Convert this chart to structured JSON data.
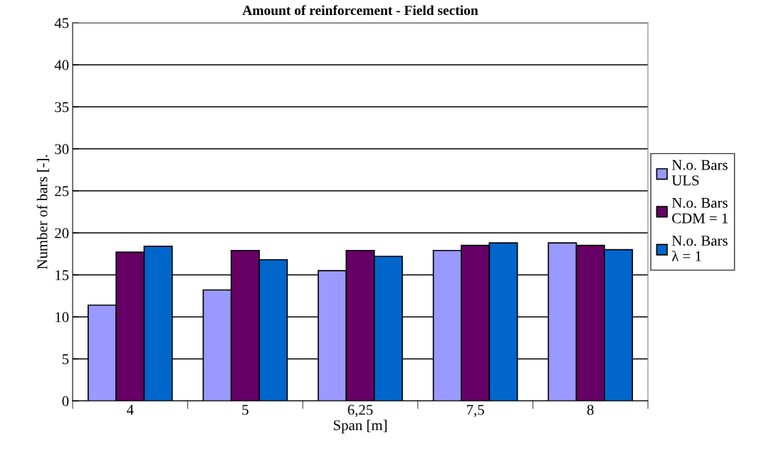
{
  "chart_data": {
    "type": "bar",
    "title": "Amount of reinforcement - Field section",
    "xlabel": "Span [m]",
    "ylabel": "Number of bars [-].",
    "categories": [
      "4",
      "5",
      "6,25",
      "7,5",
      "8"
    ],
    "series": [
      {
        "name": "N.o. Bars\nULS",
        "color": "#9999ff",
        "values": [
          11.4,
          13.2,
          15.5,
          17.9,
          18.8
        ]
      },
      {
        "name": "N.o. Bars\nCDM = 1",
        "color": "#660066",
        "values": [
          17.7,
          17.9,
          17.9,
          18.5,
          18.5
        ]
      },
      {
        "name": "N.o. Bars\nλ = 1",
        "color": "#0066cc",
        "values": [
          18.4,
          16.8,
          17.2,
          18.8,
          18.0
        ]
      }
    ],
    "ylim": [
      0,
      45
    ],
    "yticks": [
      0,
      5,
      10,
      15,
      20,
      25,
      30,
      35,
      40,
      45
    ],
    "grid": "y",
    "legend": "right"
  }
}
